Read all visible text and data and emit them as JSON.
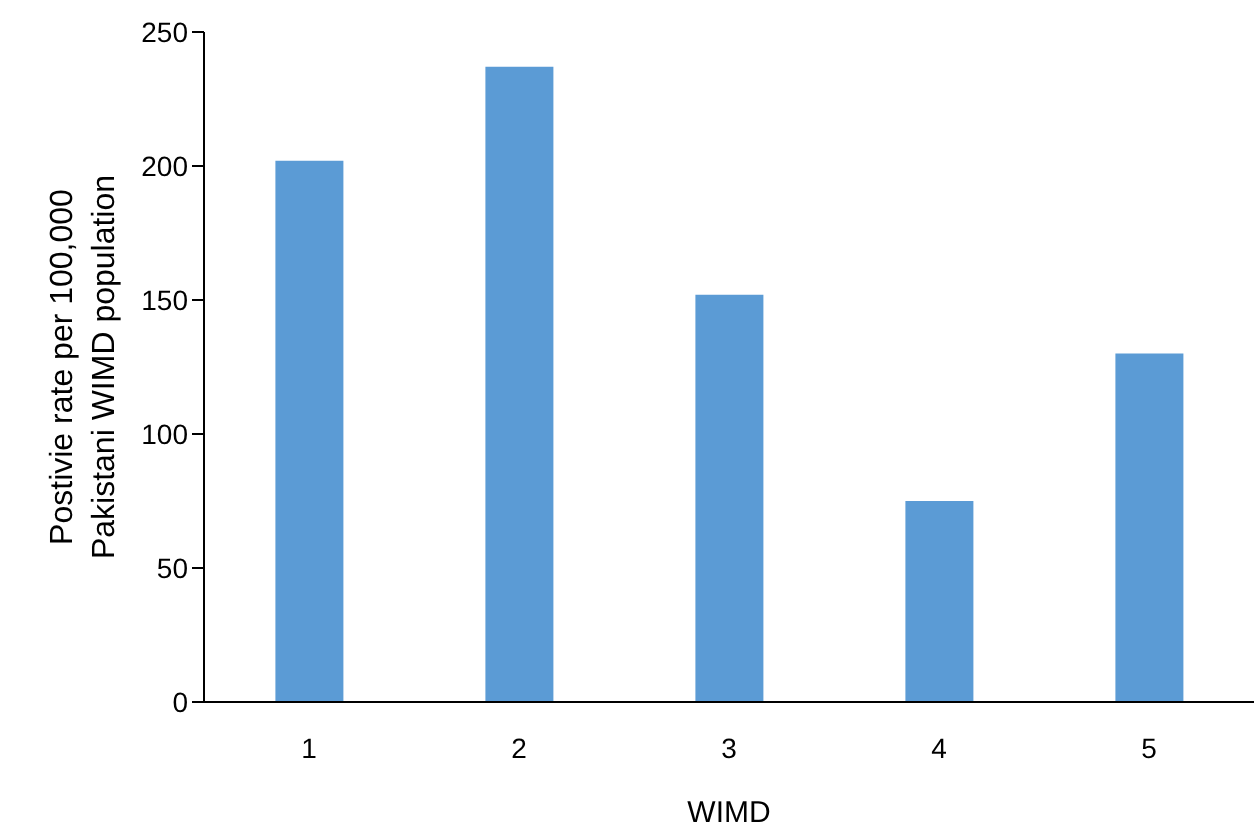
{
  "chart_data": {
    "type": "bar",
    "categories": [
      "1",
      "2",
      "3",
      "4",
      "5"
    ],
    "values": [
      202,
      237,
      152,
      75,
      130
    ],
    "color": "#5b9bd5",
    "xlabel": "WIMD",
    "ylabel": "Postivie rate per 100,000 Pakistani WIMD population",
    "ylim": [
      0,
      250
    ],
    "yticks": [
      0,
      50,
      100,
      150,
      200,
      250
    ],
    "grid": false,
    "legend": false
  }
}
